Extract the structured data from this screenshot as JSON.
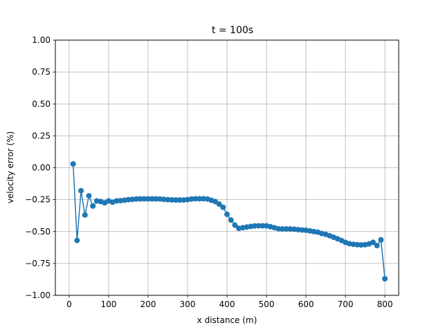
{
  "chart_data": {
    "type": "line",
    "title": "t = 100s",
    "xlabel": "x distance (m)",
    "ylabel": "velocity error (%)",
    "xlim": [
      -35,
      835
    ],
    "ylim": [
      -1.0,
      1.0
    ],
    "xticks": [
      0,
      100,
      200,
      300,
      400,
      500,
      600,
      700,
      800
    ],
    "yticks": [
      -1.0,
      -0.75,
      -0.5,
      -0.25,
      0.0,
      0.25,
      0.5,
      0.75,
      1.0
    ],
    "xtick_labels": [
      "0",
      "100",
      "200",
      "300",
      "400",
      "500",
      "600",
      "700",
      "800"
    ],
    "ytick_labels": [
      "−1.00",
      "−0.75",
      "−0.50",
      "−0.25",
      "0.00",
      "0.25",
      "0.50",
      "0.75",
      "1.00"
    ],
    "grid": true,
    "series": [
      {
        "color": "#1f77b4",
        "marker": "circle",
        "x": [
          10,
          20,
          30,
          40,
          50,
          60,
          70,
          80,
          90,
          100,
          110,
          120,
          130,
          140,
          150,
          160,
          170,
          180,
          190,
          200,
          210,
          220,
          230,
          240,
          250,
          260,
          270,
          280,
          290,
          300,
          310,
          320,
          330,
          340,
          350,
          360,
          370,
          380,
          390,
          400,
          410,
          420,
          430,
          440,
          450,
          460,
          470,
          480,
          490,
          500,
          510,
          520,
          530,
          540,
          550,
          560,
          570,
          580,
          590,
          600,
          610,
          620,
          630,
          640,
          650,
          660,
          670,
          680,
          690,
          700,
          710,
          720,
          730,
          740,
          750,
          760,
          770,
          780,
          790,
          800
        ],
        "y": [
          0.03,
          -0.57,
          -0.18,
          -0.37,
          -0.22,
          -0.3,
          -0.26,
          -0.265,
          -0.275,
          -0.26,
          -0.27,
          -0.26,
          -0.258,
          -0.255,
          -0.25,
          -0.248,
          -0.245,
          -0.244,
          -0.244,
          -0.244,
          -0.244,
          -0.244,
          -0.245,
          -0.248,
          -0.25,
          -0.252,
          -0.253,
          -0.253,
          -0.253,
          -0.25,
          -0.245,
          -0.243,
          -0.243,
          -0.243,
          -0.245,
          -0.255,
          -0.265,
          -0.285,
          -0.31,
          -0.365,
          -0.41,
          -0.45,
          -0.475,
          -0.47,
          -0.465,
          -0.46,
          -0.456,
          -0.455,
          -0.455,
          -0.455,
          -0.462,
          -0.47,
          -0.478,
          -0.48,
          -0.48,
          -0.48,
          -0.482,
          -0.485,
          -0.488,
          -0.49,
          -0.495,
          -0.5,
          -0.505,
          -0.515,
          -0.522,
          -0.533,
          -0.545,
          -0.557,
          -0.57,
          -0.585,
          -0.595,
          -0.6,
          -0.603,
          -0.605,
          -0.603,
          -0.597,
          -0.585,
          -0.61,
          -0.565,
          -0.87
        ]
      }
    ]
  }
}
